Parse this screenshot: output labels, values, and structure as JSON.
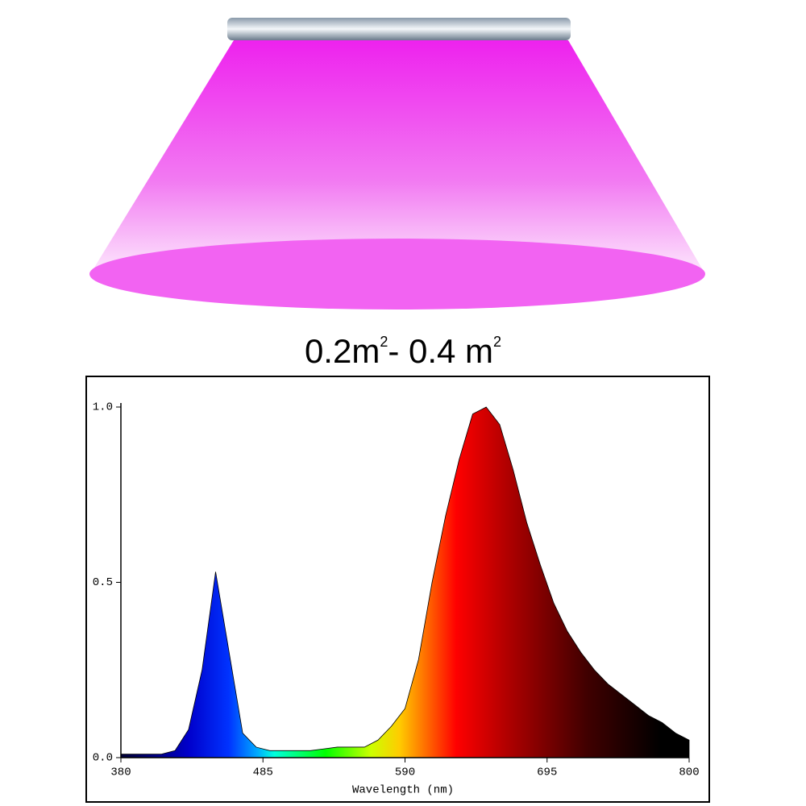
{
  "coverage": [
    {
      "text": "0.2m",
      "sup": "2"
    },
    {
      "text": "- 0.4 m",
      "sup": "2"
    }
  ],
  "chart_data": {
    "type": "area",
    "x_label": "Wavelength (nm)",
    "x": [
      380,
      390,
      400,
      410,
      420,
      430,
      440,
      450,
      460,
      470,
      480,
      490,
      500,
      510,
      520,
      530,
      540,
      550,
      560,
      570,
      580,
      590,
      600,
      610,
      620,
      630,
      640,
      650,
      660,
      670,
      680,
      690,
      700,
      710,
      720,
      730,
      740,
      750,
      760,
      770,
      780,
      790,
      800
    ],
    "values": [
      0.01,
      0.01,
      0.01,
      0.01,
      0.02,
      0.08,
      0.25,
      0.53,
      0.3,
      0.07,
      0.03,
      0.02,
      0.02,
      0.02,
      0.02,
      0.025,
      0.03,
      0.03,
      0.03,
      0.05,
      0.09,
      0.14,
      0.28,
      0.5,
      0.69,
      0.85,
      0.98,
      1.0,
      0.95,
      0.82,
      0.67,
      0.55,
      0.44,
      0.36,
      0.3,
      0.25,
      0.21,
      0.18,
      0.15,
      0.12,
      0.1,
      0.07,
      0.05
    ],
    "xlim": [
      380,
      800
    ],
    "xticks": [
      380,
      485,
      590,
      695,
      800
    ],
    "ylim": [
      0,
      1.0
    ],
    "yticks": [
      {
        "value": 0,
        "label": "0.0"
      },
      {
        "value": 0.5,
        "label": "0.5"
      },
      {
        "value": 1.0,
        "label": "1.0"
      }
    ]
  }
}
